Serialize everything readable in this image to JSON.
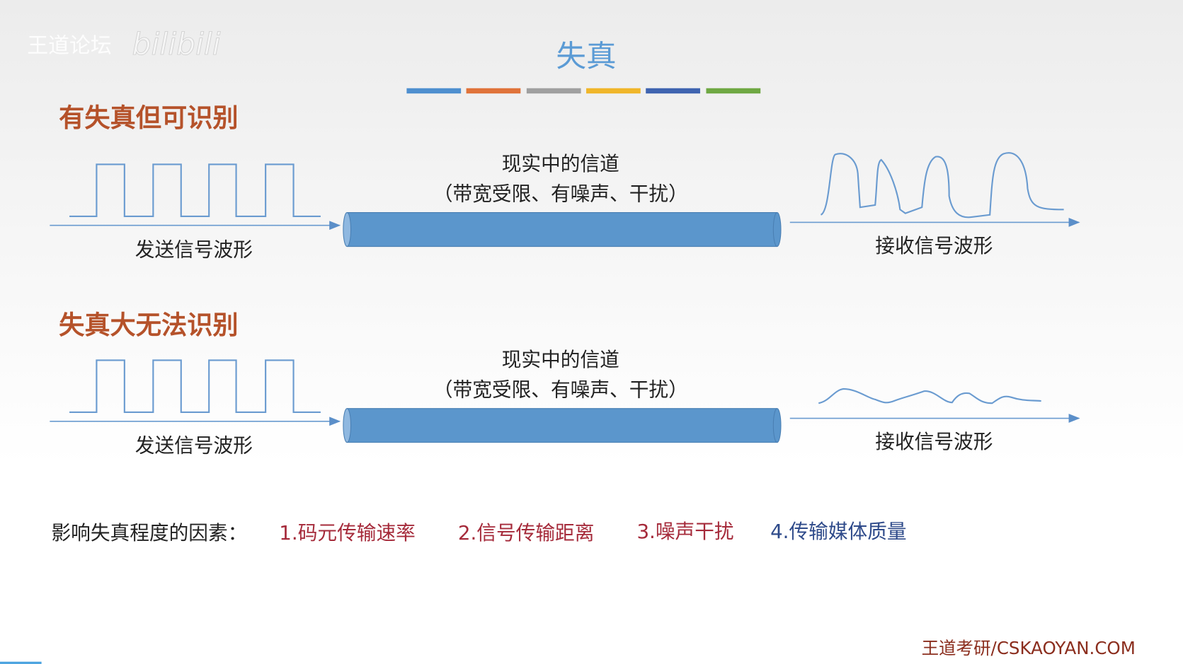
{
  "watermark": {
    "forum": "王道论坛",
    "logo_text": "bilibili"
  },
  "title": "失真",
  "title_color": "#5b9bd5",
  "color_bars": [
    "#4e8fcf",
    "#e0733a",
    "#a0a0a0",
    "#f0b62a",
    "#3f64b0",
    "#6fa843"
  ],
  "sections": [
    {
      "heading": "有失真但可识别",
      "channel_line1": "现实中的信道",
      "channel_line2": "（带宽受限、有噪声、干扰）",
      "send_label": "发送信号波形",
      "recv_label": "接收信号波形"
    },
    {
      "heading": "失真大无法识别",
      "channel_line1": "现实中的信道",
      "channel_line2": "（带宽受限、有噪声、干扰）",
      "send_label": "发送信号波形",
      "recv_label": "接收信号波形"
    }
  ],
  "factors": {
    "label": "影响失真程度的因素：",
    "items": [
      "1.码元传输速率",
      "2.信号传输距离",
      "3.噪声干扰",
      "4.传输媒体质量"
    ]
  },
  "footer": "王道考研/CSKAOYAN.COM"
}
